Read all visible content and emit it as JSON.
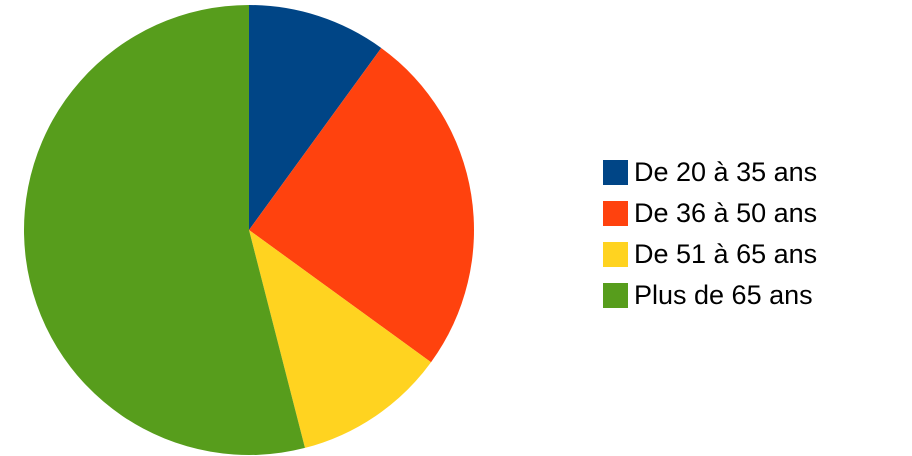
{
  "chart_data": {
    "type": "pie",
    "title": "",
    "categories": [
      "De 20 à 35 ans",
      "De 36 à 50 ans",
      "De 51 à 65 ans",
      "Plus de 65 ans"
    ],
    "values": [
      10,
      25,
      11,
      54
    ],
    "unit": "%",
    "start_angle_deg": 0,
    "direction": "clockwise",
    "colors": [
      "#004586",
      "#ff420e",
      "#ffd320",
      "#579d1c"
    ],
    "legend": {
      "position": "right",
      "items": [
        {
          "label": "De 20 à 35 ans",
          "color": "#004586"
        },
        {
          "label": "De 36 à 50 ans",
          "color": "#ff420e"
        },
        {
          "label": "De 51 à 65 ans",
          "color": "#ffd320"
        },
        {
          "label": "Plus de 65 ans",
          "color": "#579d1c"
        }
      ]
    }
  }
}
